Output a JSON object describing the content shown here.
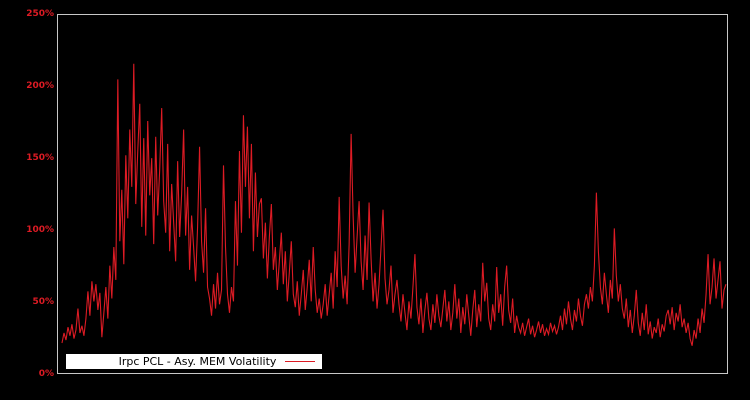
{
  "figure": {
    "background": "#000000",
    "plot_border_color": "#c8c8c8"
  },
  "y_axis": {
    "color": "#dd1b24",
    "tick_labels": [
      "250%",
      "200%",
      "150%",
      "100%",
      "50%",
      "0%"
    ]
  },
  "x_axis": {
    "tick_labels": []
  },
  "legend": {
    "label": "Irpc PCL - Asy. MEM Volatility",
    "background": "#ffffff",
    "text_color": "#000000",
    "line_color": "#dd1b24"
  },
  "chart_data": {
    "type": "line",
    "title": "",
    "xlabel": "",
    "ylabel": "",
    "ylim": [
      0,
      250
    ],
    "y_unit": "percent",
    "y_ticks_percent": [
      0,
      50,
      100,
      150,
      200,
      250
    ],
    "grid": false,
    "background": "#000000",
    "legend_position": "inside-bottom-left",
    "series": [
      {
        "name": "Irpc PCL - Asy. MEM Volatility",
        "color": "#dd1b24",
        "unit": "percent",
        "values": [
          21,
          28,
          23,
          32,
          26,
          34,
          24,
          30,
          45,
          28,
          33,
          26,
          38,
          57,
          40,
          64,
          50,
          62,
          44,
          56,
          25,
          42,
          60,
          38,
          75,
          52,
          88,
          65,
          205,
          92,
          128,
          76,
          152,
          108,
          170,
          130,
          216,
          118,
          155,
          188,
          102,
          164,
          96,
          176,
          124,
          150,
          90,
          165,
          110,
          142,
          185,
          120,
          98,
          160,
          85,
          132,
          105,
          78,
          148,
          95,
          125,
          170,
          96,
          130,
          72,
          110,
          88,
          64,
          102,
          158,
          92,
          70,
          115,
          60,
          52,
          40,
          62,
          45,
          70,
          48,
          58,
          145,
          88,
          55,
          42,
          60,
          50,
          120,
          75,
          155,
          98,
          180,
          130,
          172,
          108,
          160,
          85,
          140,
          95,
          118,
          122,
          80,
          105,
          66,
          95,
          118,
          72,
          88,
          58,
          78,
          98,
          62,
          85,
          50,
          70,
          92,
          55,
          46,
          64,
          40,
          55,
          72,
          44,
          60,
          79,
          50,
          88,
          58,
          42,
          52,
          38,
          48,
          62,
          40,
          55,
          70,
          45,
          85,
          60,
          123,
          75,
          52,
          68,
          48,
          90,
          167,
          110,
          70,
          95,
          120,
          78,
          58,
          96,
          65,
          119,
          80,
          50,
          70,
          45,
          62,
          88,
          114,
          66,
          48,
          58,
          75,
          42,
          55,
          65,
          48,
          36,
          55,
          42,
          30,
          50,
          38,
          60,
          83,
          46,
          34,
          52,
          28,
          44,
          56,
          38,
          30,
          48,
          35,
          55,
          40,
          32,
          45,
          58,
          36,
          50,
          30,
          42,
          62,
          38,
          52,
          28,
          46,
          34,
          55,
          40,
          26,
          44,
          58,
          32,
          48,
          36,
          77,
          50,
          63,
          38,
          30,
          48,
          36,
          74,
          42,
          55,
          33,
          60,
          75,
          44,
          35,
          52,
          28,
          40,
          32,
          28,
          35,
          26,
          32,
          38,
          27,
          33,
          25,
          30,
          36,
          28,
          34,
          26,
          31,
          27,
          35,
          29,
          33,
          27,
          32,
          40,
          30,
          45,
          34,
          50,
          38,
          30,
          44,
          36,
          52,
          40,
          33,
          48,
          55,
          45,
          60,
          50,
          75,
          126,
          85,
          60,
          48,
          70,
          55,
          42,
          65,
          52,
          101,
          68,
          50,
          62,
          45,
          38,
          52,
          32,
          44,
          28,
          40,
          58,
          35,
          26,
          42,
          30,
          48,
          27,
          36,
          24,
          32,
          28,
          38,
          25,
          34,
          29,
          40,
          44,
          34,
          46,
          30,
          42,
          36,
          48,
          32,
          38,
          28,
          35,
          24,
          19,
          30,
          24,
          38,
          28,
          45,
          35,
          55,
          83,
          48,
          60,
          80,
          52,
          65,
          78,
          45,
          58,
          62
        ]
      }
    ]
  }
}
